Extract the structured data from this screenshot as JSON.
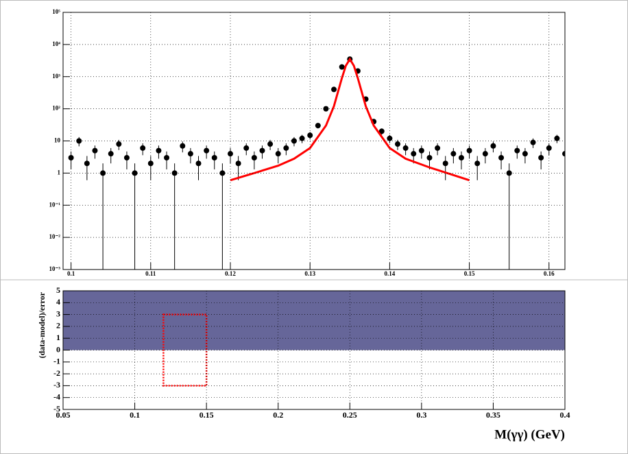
{
  "chart_data": [
    {
      "type": "scatter",
      "log_y": true,
      "grid": true,
      "x": [
        0.1,
        0.101,
        0.102,
        0.103,
        0.104,
        0.105,
        0.106,
        0.107,
        0.108,
        0.109,
        0.11,
        0.111,
        0.112,
        0.113,
        0.114,
        0.115,
        0.116,
        0.117,
        0.118,
        0.119,
        0.12,
        0.121,
        0.122,
        0.123,
        0.124,
        0.125,
        0.126,
        0.127,
        0.128,
        0.129,
        0.13,
        0.131,
        0.132,
        0.133,
        0.134,
        0.135,
        0.136,
        0.137,
        0.138,
        0.139,
        0.14,
        0.141,
        0.142,
        0.143,
        0.144,
        0.145,
        0.146,
        0.147,
        0.148,
        0.149,
        0.15,
        0.151,
        0.152,
        0.153,
        0.154,
        0.155,
        0.156,
        0.157,
        0.158,
        0.159,
        0.16,
        0.161,
        0.162
      ],
      "series": [
        {
          "color": "#000000",
          "values": [
            3,
            10,
            2,
            5,
            1,
            4,
            8,
            3,
            1,
            6,
            2,
            5,
            3,
            1,
            7,
            4,
            2,
            5,
            3,
            1,
            4,
            2,
            6,
            3,
            5,
            8,
            4,
            6,
            10,
            12,
            15,
            30,
            100,
            400,
            2000,
            3500,
            1500,
            200,
            40,
            20,
            12,
            8,
            6,
            4,
            5,
            3,
            6,
            2,
            4,
            3,
            5,
            2,
            4,
            7,
            3,
            1,
            5,
            4,
            9,
            3,
            6,
            12,
            4
          ],
          "errors": [
            1.7,
            3.2,
            1.4,
            2.2,
            1,
            2,
            2.8,
            1.7,
            1,
            2.4,
            1.4,
            2.2,
            1.7,
            1,
            2.6,
            2,
            1.4,
            2.2,
            1.7,
            1,
            2,
            1.4,
            2.4,
            1.7,
            2.2,
            2.8,
            2,
            2.4,
            3.2,
            3.5,
            3.9,
            5.5,
            10,
            20,
            45,
            59,
            39,
            14,
            6.3,
            4.5,
            3.5,
            2.8,
            2.4,
            2,
            2.2,
            1.7,
            2.4,
            1.4,
            2,
            1.7,
            2.2,
            1.4,
            2,
            2.6,
            1.7,
            1,
            2.2,
            2,
            3,
            1.7,
            2.4,
            3.5,
            2
          ]
        },
        {
          "color": "#ff0000",
          "x": [
            0.12,
            0.123,
            0.126,
            0.128,
            0.13,
            0.132,
            0.133,
            0.134,
            0.1345,
            0.135,
            0.1355,
            0.136,
            0.137,
            0.138,
            0.14,
            0.142,
            0.145,
            0.15
          ],
          "values": [
            0.6,
            1,
            1.7,
            2.8,
            6,
            30,
            120,
            900,
            2200,
            3500,
            2200,
            900,
            120,
            30,
            6,
            2.8,
            1.5,
            0.6
          ]
        }
      ],
      "xlim": [
        0.099,
        0.162
      ],
      "ylim": [
        0.001,
        100000
      ],
      "xticks": [
        0.1,
        0.11,
        0.12,
        0.13,
        0.14,
        0.15,
        0.16
      ],
      "yticks": [
        {
          "value": 0.001,
          "label": "10⁻³"
        },
        {
          "value": 0.01,
          "label": "10⁻²"
        },
        {
          "value": 0.1,
          "label": "10⁻¹"
        },
        1,
        10,
        {
          "value": 100,
          "label": "10²"
        },
        {
          "value": 1000,
          "label": "10³"
        },
        {
          "value": 10000,
          "label": "10⁴"
        },
        {
          "value": 100000,
          "label": "10⁵"
        }
      ]
    },
    {
      "type": "area",
      "grid": true,
      "ylabel": "(data-model)/error",
      "xlabel": "M(γγ) (GeV)",
      "x": [
        0.05,
        0.4
      ],
      "values": [
        5,
        5
      ],
      "color": "#666699",
      "box": {
        "xlim": [
          0.12,
          0.15
        ],
        "ylim": [
          -3,
          3
        ],
        "color": "#ff0000"
      },
      "xlim": [
        0.05,
        0.4
      ],
      "ylim": [
        -5,
        5
      ],
      "xticks": [
        0.05,
        0.1,
        0.15,
        0.2,
        0.25,
        0.3,
        0.35,
        0.4
      ],
      "yticks": [
        -5,
        -4,
        -3,
        -2,
        -1,
        0,
        1,
        2,
        3,
        4,
        5
      ]
    }
  ]
}
